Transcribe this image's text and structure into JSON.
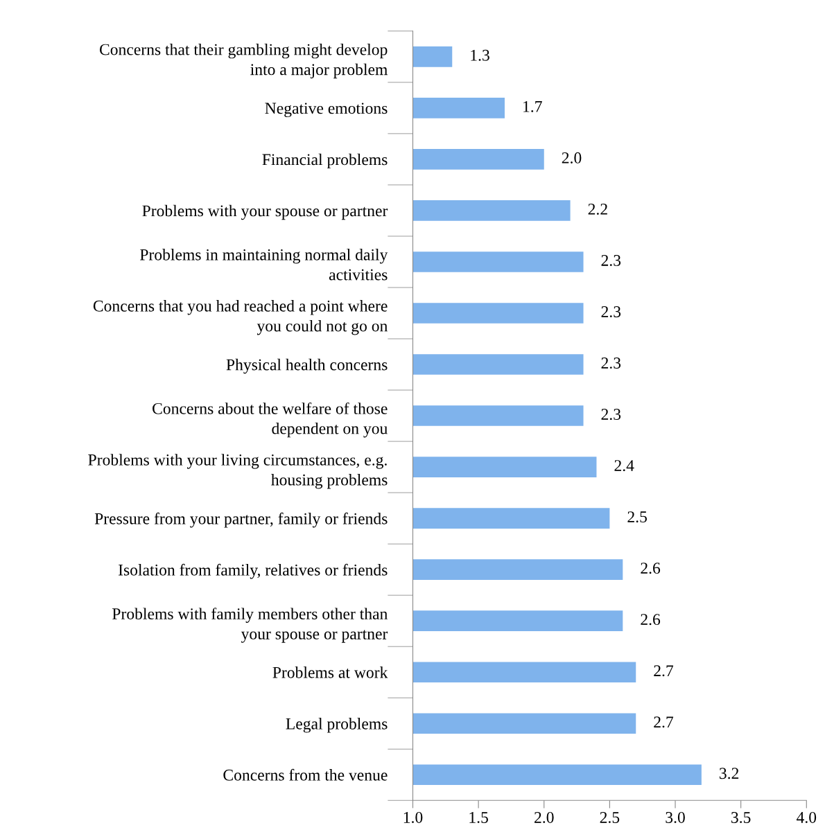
{
  "chart_data": {
    "type": "bar",
    "orientation": "horizontal",
    "categories": [
      "Concerns that their gambling might develop\ninto a major problem",
      "Negative emotions",
      "Financial problems",
      "Problems with your spouse or partner",
      "Problems in maintaining normal daily\nactivities",
      "Concerns that you had reached a point where\nyou could not go on",
      "Physical health concerns",
      "Concerns about the welfare of those\ndependent on you",
      "Problems with your living circumstances, e.g.\nhousing problems",
      "Pressure from your partner, family or friends",
      "Isolation from family, relatives or friends",
      "Problems with family members other than\nyour spouse or partner",
      "Problems at work",
      "Legal problems",
      "Concerns from the venue"
    ],
    "values": [
      1.3,
      1.7,
      2.0,
      2.2,
      2.3,
      2.3,
      2.3,
      2.3,
      2.4,
      2.5,
      2.6,
      2.6,
      2.7,
      2.7,
      3.2
    ],
    "color": "#7fb3ec",
    "xlim": [
      1.0,
      4.0
    ],
    "xticks": [
      {
        "value": 1.0,
        "label": "1.0"
      },
      {
        "value": 1.5,
        "label": "1.5"
      },
      {
        "value": 2.0,
        "label": "2.0"
      },
      {
        "value": 2.5,
        "label": "2.5"
      },
      {
        "value": 3.0,
        "label": "3.0"
      },
      {
        "value": 3.5,
        "label": "3.5"
      },
      {
        "value": 4.0,
        "label": "4.0"
      }
    ],
    "value_labels": [
      "1.3",
      "1.7",
      "2.0",
      "2.2",
      "2.3",
      "2.3",
      "2.3",
      "2.3",
      "2.4",
      "2.5",
      "2.6",
      "2.6",
      "2.7",
      "2.7",
      "3.2"
    ],
    "grid": false,
    "legend": false
  }
}
